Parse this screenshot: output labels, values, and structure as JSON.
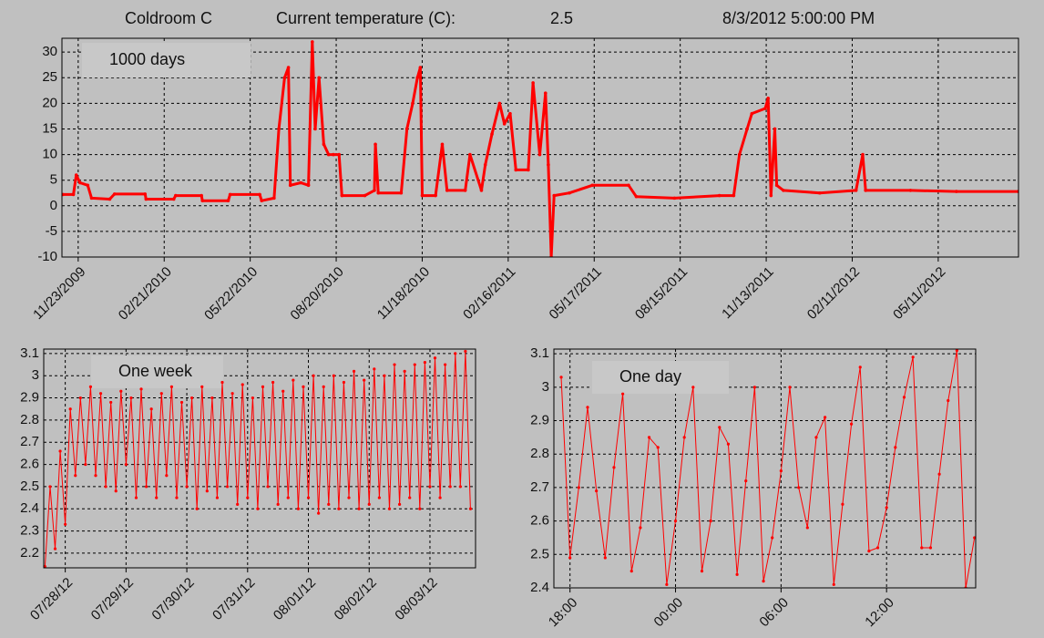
{
  "header": {
    "location": "Coldroom C",
    "current_label": "Current temperature (C):",
    "current_value": "2.5",
    "timestamp": "8/3/2012 5:00:00 PM"
  },
  "chart_data": [
    {
      "type": "line",
      "title": "1000 days",
      "color": "#ff0000",
      "grid": true,
      "xlim": [
        "2009-11-06",
        "2012-08-03"
      ],
      "ylim": [
        -10,
        32.7
      ],
      "yticks": [
        -10,
        -5,
        0,
        5,
        10,
        15,
        20,
        25,
        30
      ],
      "xticks": [
        {
          "value": "2009-11-23",
          "label": "11/23/2009"
        },
        {
          "value": "2010-02-21",
          "label": "02/21/2010"
        },
        {
          "value": "2010-05-22",
          "label": "05/22/2010"
        },
        {
          "value": "2010-08-20",
          "label": "08/20/2010"
        },
        {
          "value": "2010-11-18",
          "label": "11/18/2010"
        },
        {
          "value": "2011-02-16",
          "label": "02/16/2011"
        },
        {
          "value": "2011-05-17",
          "label": "05/17/2011"
        },
        {
          "value": "2011-08-15",
          "label": "08/15/2011"
        },
        {
          "value": "2011-11-13",
          "label": "11/13/2011"
        },
        {
          "value": "2012-02-11",
          "label": "02/11/2012"
        },
        {
          "value": "2012-05-11",
          "label": "05/11/2012"
        }
      ],
      "x": [
        "2009-11-07",
        "2009-11-18",
        "2009-11-21",
        "2009-11-25",
        "2009-12-03",
        "2009-12-07",
        "2009-12-26",
        "2009-12-31",
        "2010-02-01",
        "2010-02-02",
        "2010-03-03",
        "2010-03-05",
        "2010-04-01",
        "2010-04-02",
        "2010-04-29",
        "2010-05-01",
        "2010-06-01",
        "2010-06-03",
        "2010-06-16",
        "2010-06-21",
        "2010-06-27",
        "2010-07-01",
        "2010-07-03",
        "2010-07-14",
        "2010-07-22",
        "2010-07-26",
        "2010-07-29",
        "2010-08-02",
        "2010-08-07",
        "2010-08-12",
        "2010-08-17",
        "2010-08-23",
        "2010-08-26",
        "2010-09-19",
        "2010-09-29",
        "2010-09-30",
        "2010-10-03",
        "2010-10-27",
        "2010-11-02",
        "2010-11-08",
        "2010-11-13",
        "2010-11-16",
        "2010-11-18",
        "2010-12-02",
        "2010-12-09",
        "2010-12-14",
        "2011-01-02",
        "2011-01-07",
        "2011-01-19",
        "2011-01-23",
        "2011-01-30",
        "2011-02-07",
        "2011-02-12",
        "2011-02-18",
        "2011-02-24",
        "2011-03-09",
        "2011-03-14",
        "2011-03-21",
        "2011-03-27",
        "2011-03-30",
        "2011-04-02",
        "2011-04-05",
        "2011-04-21",
        "2011-05-15",
        "2011-06-22",
        "2011-06-30",
        "2011-08-09",
        "2011-09-25",
        "2011-10-10",
        "2011-10-16",
        "2011-10-24",
        "2011-10-29",
        "2011-11-12",
        "2011-11-15",
        "2011-11-18",
        "2011-11-22",
        "2011-11-24",
        "2011-12-01",
        "2012-01-08",
        "2012-02-15",
        "2012-02-22",
        "2012-02-25",
        "2012-04-12",
        "2012-05-30",
        "2012-08-03"
      ],
      "values": [
        2.2,
        2.2,
        6,
        4.5,
        4,
        1.5,
        1.3,
        2.3,
        2.3,
        1.3,
        1.3,
        2,
        2,
        1,
        1,
        2.2,
        2.2,
        1,
        1.5,
        15,
        25,
        27,
        4,
        4.5,
        4,
        32,
        15,
        25,
        12,
        10,
        10,
        10,
        2,
        2,
        3,
        12,
        2.5,
        2.5,
        15,
        20,
        25,
        27,
        2,
        2,
        12,
        3,
        3,
        10,
        3,
        8,
        14,
        20,
        16,
        18,
        7,
        7,
        24,
        10,
        22,
        8,
        -10,
        2,
        2.5,
        4,
        4,
        1.8,
        1.5,
        2,
        2,
        10,
        15,
        18,
        19,
        21,
        2,
        15,
        4,
        3,
        2.5,
        3,
        10,
        3,
        3,
        2.8,
        2.8
      ]
    },
    {
      "type": "line",
      "title": "One week",
      "color": "#ff0000",
      "grid": true,
      "xlim": [
        "2012-07-27T15:30",
        "2012-08-03T18:00"
      ],
      "ylim": [
        2.134,
        3.12
      ],
      "yticks": [
        2.2,
        2.3,
        2.4,
        2.5,
        2.6,
        2.7,
        2.8,
        2.9,
        3,
        3.1
      ],
      "xticks": [
        {
          "value": "2012-07-28",
          "label": "07/28/12"
        },
        {
          "value": "2012-07-29",
          "label": "07/29/12"
        },
        {
          "value": "2012-07-30",
          "label": "07/30/12"
        },
        {
          "value": "2012-07-31",
          "label": "07/31/12"
        },
        {
          "value": "2012-08-01",
          "label": "08/01/12"
        },
        {
          "value": "2012-08-02",
          "label": "08/02/12"
        },
        {
          "value": "2012-08-03",
          "label": "08/03/12"
        }
      ],
      "x": [
        "2012-07-27T16:00",
        "2012-07-27T18:00",
        "2012-07-27T20:00",
        "2012-07-27T22:00",
        "2012-07-28T00:00",
        "2012-07-28T02:00",
        "2012-07-28T04:00",
        "2012-07-28T06:00",
        "2012-07-28T08:00",
        "2012-07-28T10:00",
        "2012-07-28T12:00",
        "2012-07-28T14:00",
        "2012-07-28T16:00",
        "2012-07-28T18:00",
        "2012-07-28T20:00",
        "2012-07-28T22:00",
        "2012-07-29T00:00",
        "2012-07-29T02:00",
        "2012-07-29T04:00",
        "2012-07-29T06:00",
        "2012-07-29T08:00",
        "2012-07-29T10:00",
        "2012-07-29T12:00",
        "2012-07-29T14:00",
        "2012-07-29T16:00",
        "2012-07-29T18:00",
        "2012-07-29T20:00",
        "2012-07-29T22:00",
        "2012-07-30T00:00",
        "2012-07-30T02:00",
        "2012-07-30T04:00",
        "2012-07-30T06:00",
        "2012-07-30T08:00",
        "2012-07-30T10:00",
        "2012-07-30T12:00",
        "2012-07-30T14:00",
        "2012-07-30T16:00",
        "2012-07-30T18:00",
        "2012-07-30T20:00",
        "2012-07-30T22:00",
        "2012-07-31T00:00",
        "2012-07-31T02:00",
        "2012-07-31T04:00",
        "2012-07-31T06:00",
        "2012-07-31T08:00",
        "2012-07-31T10:00",
        "2012-07-31T12:00",
        "2012-07-31T14:00",
        "2012-07-31T16:00",
        "2012-07-31T18:00",
        "2012-07-31T20:00",
        "2012-07-31T22:00",
        "2012-08-01T00:00",
        "2012-08-01T02:00",
        "2012-08-01T04:00",
        "2012-08-01T06:00",
        "2012-08-01T08:00",
        "2012-08-01T10:00",
        "2012-08-01T12:00",
        "2012-08-01T14:00",
        "2012-08-01T16:00",
        "2012-08-01T18:00",
        "2012-08-01T20:00",
        "2012-08-01T22:00",
        "2012-08-02T00:00",
        "2012-08-02T02:00",
        "2012-08-02T04:00",
        "2012-08-02T06:00",
        "2012-08-02T08:00",
        "2012-08-02T10:00",
        "2012-08-02T12:00",
        "2012-08-02T14:00",
        "2012-08-02T16:00",
        "2012-08-02T18:00",
        "2012-08-02T20:00",
        "2012-08-02T22:00",
        "2012-08-03T00:00",
        "2012-08-03T02:00",
        "2012-08-03T04:00",
        "2012-08-03T06:00",
        "2012-08-03T08:00",
        "2012-08-03T10:00",
        "2012-08-03T12:00",
        "2012-08-03T14:00",
        "2012-08-03T16:00"
      ],
      "values": [
        2.14,
        2.5,
        2.22,
        2.66,
        2.33,
        2.85,
        2.55,
        2.9,
        2.6,
        2.95,
        2.55,
        2.92,
        2.5,
        2.88,
        2.48,
        2.93,
        2.6,
        2.9,
        2.45,
        2.94,
        2.5,
        2.85,
        2.45,
        2.92,
        2.55,
        2.95,
        2.45,
        2.88,
        2.5,
        2.9,
        2.4,
        2.95,
        2.48,
        2.9,
        2.45,
        2.97,
        2.5,
        2.92,
        2.42,
        2.96,
        2.45,
        2.9,
        2.4,
        2.95,
        2.5,
        2.97,
        2.42,
        2.93,
        2.45,
        2.98,
        2.4,
        2.95,
        2.45,
        3.0,
        2.38,
        2.95,
        2.42,
        3.0,
        2.4,
        2.97,
        2.45,
        3.02,
        2.4,
        2.98,
        2.42,
        3.03,
        2.45,
        3.0,
        2.4,
        3.05,
        2.42,
        3.02,
        2.45,
        3.05,
        2.4,
        3.06,
        2.5,
        3.08,
        2.45,
        3.05,
        2.5,
        3.1,
        2.5,
        3.11,
        2.4
      ]
    },
    {
      "type": "line",
      "title": "One day",
      "color": "#ff0000",
      "grid": true,
      "xlim": [
        "17:05",
        "17:04"
      ],
      "ylim": [
        2.4,
        3.114
      ],
      "yticks": [
        2.4,
        2.5,
        2.6,
        2.7,
        2.8,
        2.9,
        3,
        3.1
      ],
      "xticks": [
        "18:00",
        "00:00",
        "06:00",
        "12:00"
      ],
      "x": [
        "17:30",
        "18:00",
        "18:30",
        "19:00",
        "19:30",
        "20:00",
        "20:30",
        "21:00",
        "21:30",
        "22:00",
        "22:30",
        "23:00",
        "23:30",
        "00:00",
        "00:30",
        "01:00",
        "01:30",
        "02:00",
        "02:30",
        "03:00",
        "03:30",
        "04:00",
        "04:30",
        "05:00",
        "05:30",
        "06:00",
        "06:30",
        "07:00",
        "07:30",
        "08:00",
        "08:30",
        "09:00",
        "09:30",
        "10:00",
        "10:30",
        "11:00",
        "11:30",
        "12:00",
        "12:30",
        "13:00",
        "13:30",
        "14:00",
        "14:30",
        "15:00",
        "15:30",
        "16:00",
        "16:30",
        "17:00"
      ],
      "values": [
        3.03,
        2.49,
        2.7,
        2.94,
        2.69,
        2.49,
        2.76,
        2.98,
        2.45,
        2.58,
        2.85,
        2.82,
        2.41,
        2.6,
        2.85,
        3.0,
        2.45,
        2.6,
        2.88,
        2.83,
        2.44,
        2.72,
        3.0,
        2.42,
        2.55,
        2.75,
        3.0,
        2.7,
        2.58,
        2.85,
        2.91,
        2.41,
        2.65,
        2.89,
        3.06,
        2.51,
        2.52,
        2.64,
        2.82,
        2.97,
        3.09,
        2.52,
        2.52,
        2.74,
        2.96,
        3.11,
        2.4,
        2.55
      ]
    }
  ]
}
